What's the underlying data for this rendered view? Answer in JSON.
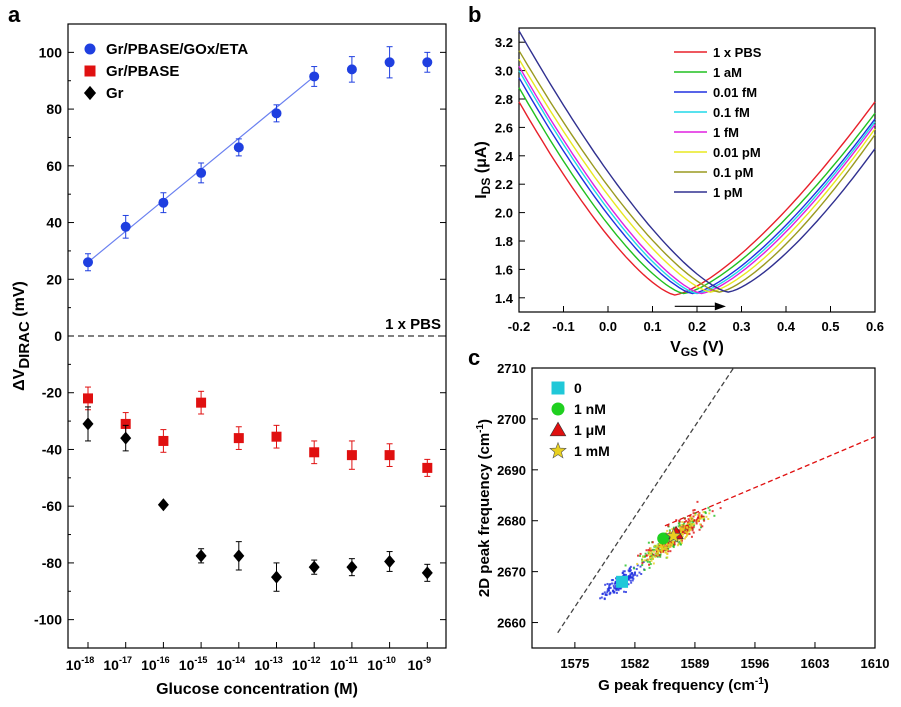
{
  "panels": {
    "a": "a",
    "b": "b",
    "c": "c"
  },
  "chart_data": [
    {
      "panel": "a",
      "type": "scatter",
      "xlabel": "Glucose concentration (M)",
      "ylabel_prefix": "ΔV",
      "ylabel_sub": "DIRAC",
      "ylabel_suffix": " (mV)",
      "x_tick_labels": [
        {
          "base": "10",
          "exp": "-18"
        },
        {
          "base": "10",
          "exp": "-17"
        },
        {
          "base": "10",
          "exp": "-16"
        },
        {
          "base": "10",
          "exp": "-15"
        },
        {
          "base": "10",
          "exp": "-14"
        },
        {
          "base": "10",
          "exp": "-13"
        },
        {
          "base": "10",
          "exp": "-12"
        },
        {
          "base": "10",
          "exp": "-11"
        },
        {
          "base": "10",
          "exp": "-10"
        },
        {
          "base": "10",
          "exp": "-9"
        }
      ],
      "ylim": [
        -110,
        110
      ],
      "y_ticks": [
        -100,
        -80,
        -60,
        -40,
        -20,
        0,
        20,
        40,
        60,
        80,
        100
      ],
      "legend_position": "top-left",
      "annotation": "1 x PBS",
      "reference_line_y": 0,
      "series": [
        {
          "name": "Gr/PBASE/GOx/ETA",
          "color": "#1f3fe0",
          "marker": "circle",
          "values": [
            26,
            38.5,
            47,
            57.5,
            66.5,
            78.5,
            91.5,
            94,
            96.5,
            96.5
          ],
          "errors": [
            3,
            4,
            3.5,
            3.5,
            3,
            3,
            3.5,
            4.5,
            5.5,
            3.5
          ]
        },
        {
          "name": "Gr/PBASE",
          "color": "#e01010",
          "marker": "square",
          "values": [
            -22,
            -31,
            -37,
            -23.5,
            -36,
            -35.5,
            -41,
            -42,
            -42,
            -46.5
          ],
          "errors": [
            4,
            4,
            4,
            4,
            4,
            4,
            4,
            5,
            4,
            3
          ]
        },
        {
          "name": "Gr",
          "color": "#000000",
          "marker": "diamond",
          "values": [
            -31,
            -36,
            -59.5,
            -77.5,
            -77.5,
            -85,
            -81.5,
            -81.5,
            -79.5,
            -83.5
          ],
          "errors": [
            6,
            4.5,
            0,
            2.5,
            5,
            5,
            2.5,
            3,
            3.5,
            3
          ]
        }
      ],
      "fit_series_index": 0,
      "fit_x_range": [
        0,
        6
      ]
    },
    {
      "panel": "b",
      "type": "line",
      "xlabel_main": "V",
      "xlabel_sub": "GS",
      "xlabel_unit": " (V)",
      "ylabel_main": "I",
      "ylabel_sub": "DS",
      "ylabel_unit": " (μA)",
      "xlim": [
        -0.2,
        0.6
      ],
      "ylim": [
        1.3,
        3.3
      ],
      "x_ticks": [
        "-0.2",
        "-0.1",
        "0.0",
        "0.1",
        "0.2",
        "0.3",
        "0.4",
        "0.5",
        "0.6"
      ],
      "y_ticks": [
        "1.4",
        "1.6",
        "1.8",
        "2.0",
        "2.2",
        "2.4",
        "2.6",
        "2.8",
        "3.0",
        "3.2"
      ],
      "legend_position": "top-right",
      "arrow_direction": "right",
      "series": [
        {
          "name": "1 x PBS",
          "color": "#e8202a",
          "vmin": 0.15,
          "imin": 1.42,
          "left": 2.78,
          "right": 2.78
        },
        {
          "name": "1 aM",
          "color": "#20c020",
          "vmin": 0.17,
          "imin": 1.43,
          "left": 2.88,
          "right": 2.7
        },
        {
          "name": "0.01 fM",
          "color": "#2030e0",
          "vmin": 0.19,
          "imin": 1.43,
          "left": 2.95,
          "right": 2.66
        },
        {
          "name": "0.1 fM",
          "color": "#20d8e8",
          "vmin": 0.2,
          "imin": 1.43,
          "left": 3.0,
          "right": 2.64
        },
        {
          "name": "1 fM",
          "color": "#e020e0",
          "vmin": 0.21,
          "imin": 1.43,
          "left": 3.03,
          "right": 2.62
        },
        {
          "name": "0.01 pM",
          "color": "#e8e820",
          "vmin": 0.23,
          "imin": 1.44,
          "left": 3.08,
          "right": 2.59
        },
        {
          "name": "0.1 pM",
          "color": "#9a9a20",
          "vmin": 0.25,
          "imin": 1.44,
          "left": 3.14,
          "right": 2.55
        },
        {
          "name": "1 pM",
          "color": "#303090",
          "vmin": 0.27,
          "imin": 1.44,
          "left": 3.28,
          "right": 2.45
        }
      ]
    },
    {
      "panel": "c",
      "type": "scatter",
      "xlabel_main": "G peak frequency (cm",
      "xlabel_sup": "-1",
      "xlabel_end": ")",
      "ylabel_main": "2D peak frequency (cm",
      "ylabel_sup": "-1",
      "ylabel_end": ")",
      "xlim": [
        1570,
        1610
      ],
      "ylim": [
        2655,
        2710
      ],
      "x_ticks": [
        1575,
        1582,
        1589,
        1596,
        1603,
        1610
      ],
      "y_ticks": [
        2660,
        2670,
        2680,
        2690,
        2700,
        2710
      ],
      "legend_position": "top-left",
      "series": [
        {
          "name": "0",
          "color": "#20c8d8",
          "marker": "square",
          "x": 1580.5,
          "y": 2668
        },
        {
          "name": "1 nM",
          "color": "#20d020",
          "marker": "circle",
          "x": 1585.3,
          "y": 2676.5
        },
        {
          "name": "1 μM",
          "color": "#e01010",
          "marker": "triangle",
          "x": 1586.8,
          "y": 2677.5
        },
        {
          "name": "1 mM",
          "color": "#e8d020",
          "marker": "star",
          "x": 1586.5,
          "y": 2677
        }
      ],
      "reference_lines": [
        {
          "color": "#444444",
          "from": [
            1573,
            2658
          ],
          "to": [
            1593.5,
            2710
          ]
        },
        {
          "color": "#e01010",
          "from": [
            1585.5,
            2679
          ],
          "to": [
            1610,
            2696.5
          ]
        }
      ],
      "cloud_colors": [
        "#2030e0",
        "#20c020",
        "#e01010",
        "#e8d020"
      ]
    }
  ]
}
